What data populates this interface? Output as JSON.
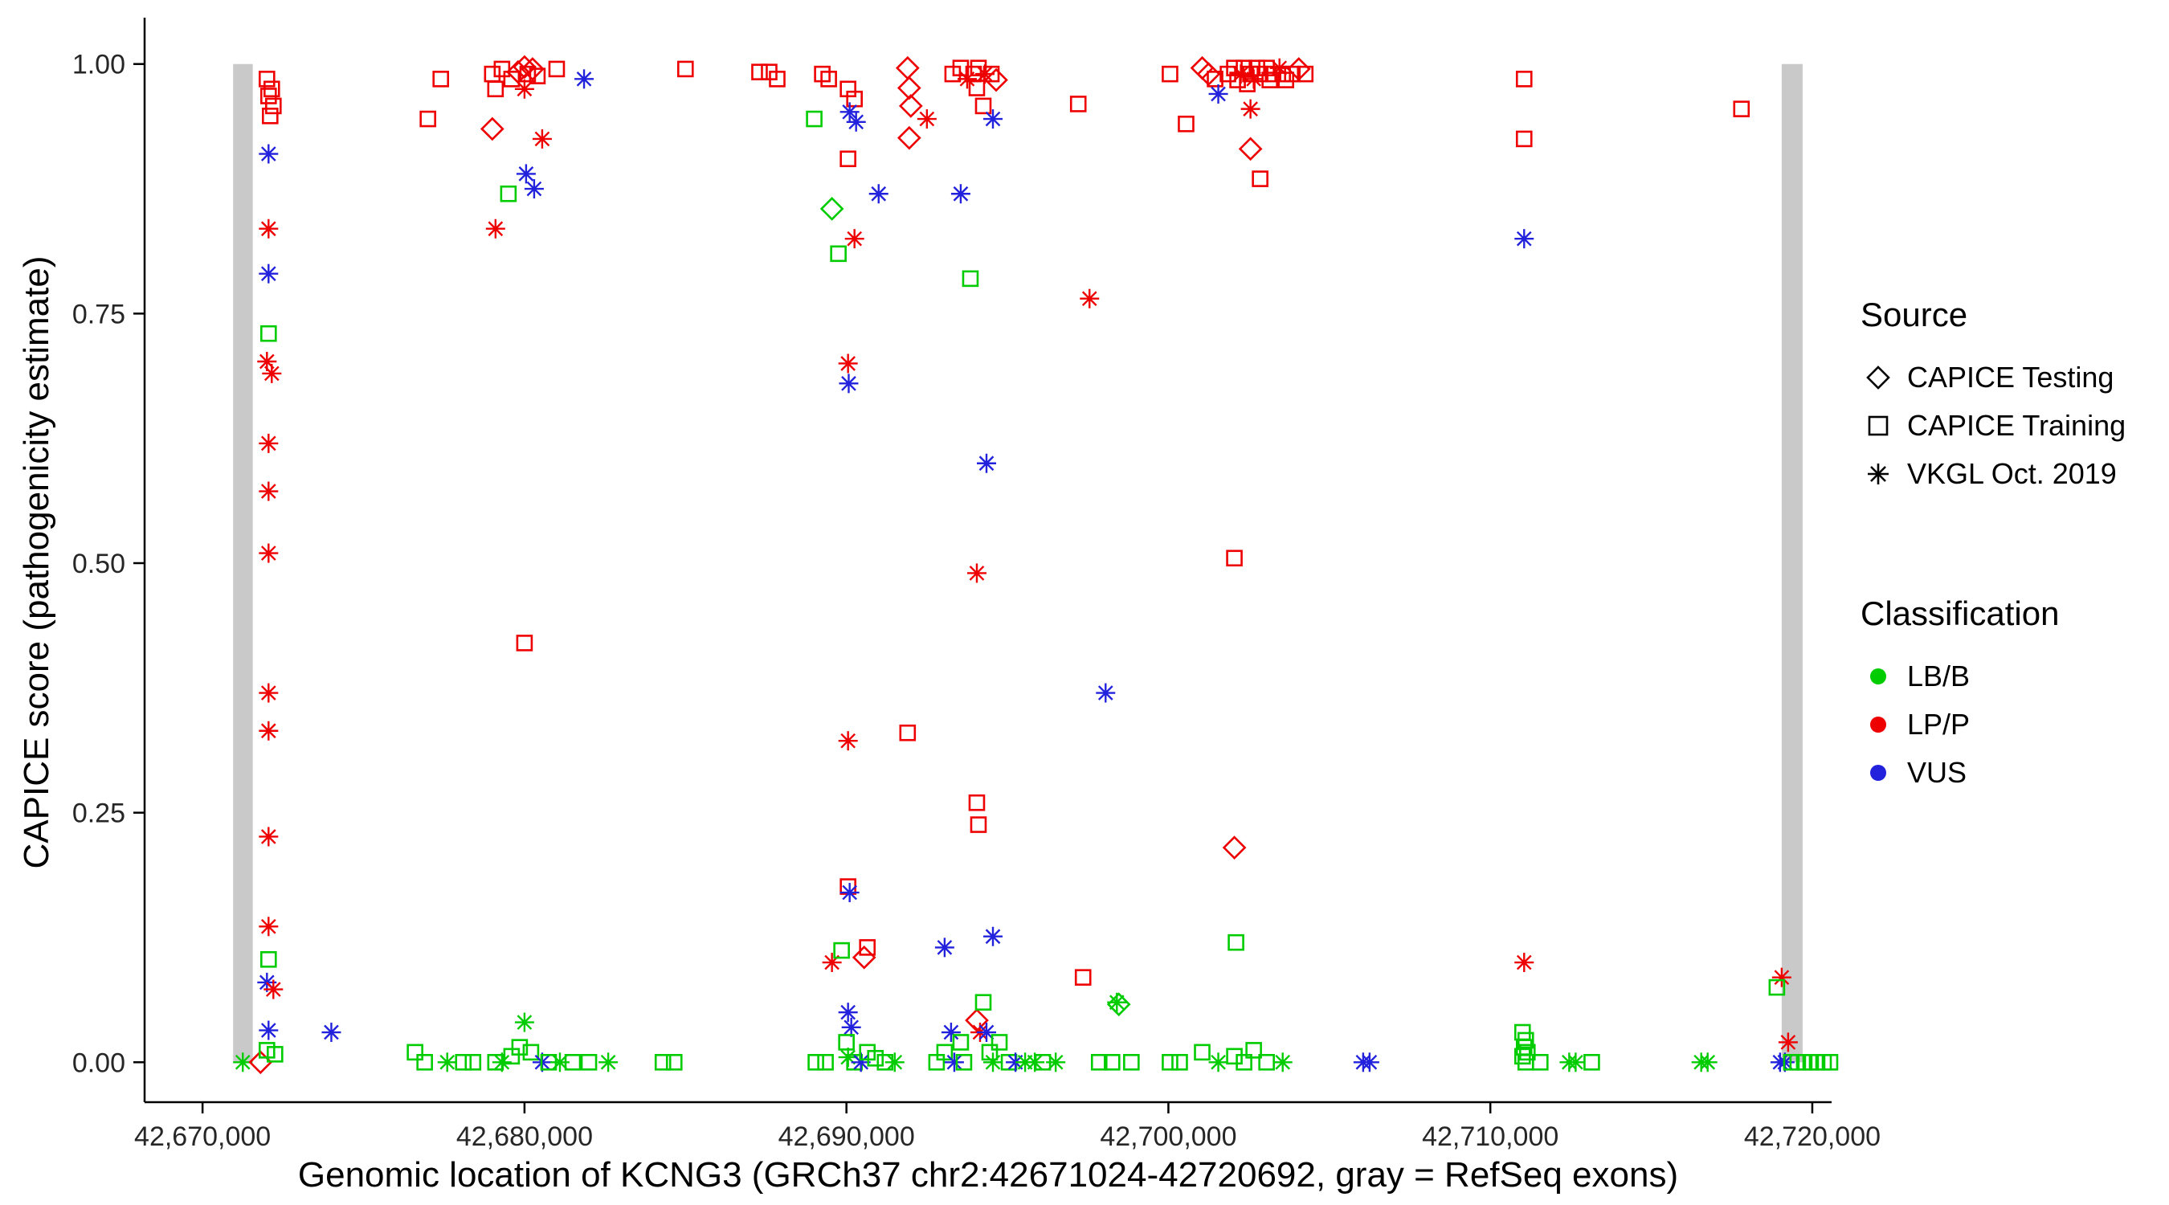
{
  "chart_data": {
    "type": "scatter",
    "title": "",
    "xlabel": "Genomic location of KCNG3 (GRCh37 chr2:42671024-42720692, gray = RefSeq exons)",
    "ylabel": "CAPICE score (pathogenicity estimate)",
    "xlim": [
      42668200,
      42720600
    ],
    "ylim": [
      -0.04,
      1.04
    ],
    "grid": "off",
    "x_ticks": [
      {
        "value": 42670000,
        "label": "42,670,000"
      },
      {
        "value": 42680000,
        "label": "42,680,000"
      },
      {
        "value": 42690000,
        "label": "42,690,000"
      },
      {
        "value": 42700000,
        "label": "42,700,000"
      },
      {
        "value": 42710000,
        "label": "42,710,000"
      },
      {
        "value": 42720000,
        "label": "42,720,000"
      }
    ],
    "y_ticks": [
      {
        "value": 0.0,
        "label": "0.00"
      },
      {
        "value": 0.25,
        "label": "0.25"
      },
      {
        "value": 0.5,
        "label": "0.50"
      },
      {
        "value": 0.75,
        "label": "0.75"
      },
      {
        "value": 1.0,
        "label": "1.00"
      }
    ],
    "exon_color": "#c9c9c9",
    "exons": [
      {
        "start": 42670950,
        "end": 42671560
      },
      {
        "start": 42719050,
        "end": 42719700
      }
    ],
    "shape_map": {
      "d": "CAPICE Testing",
      "s": "CAPICE Training",
      "a": "VKGL Oct. 2019"
    },
    "class_map": {
      "g": "LB/B",
      "r": "LP/P",
      "b": "VUS"
    },
    "colors": {
      "g": "#00cc00",
      "r": "#ee0000",
      "b": "#2222dd"
    },
    "points": [
      [
        42671250,
        0.0,
        "a",
        "g"
      ],
      [
        42671800,
        0.0,
        "d",
        "r"
      ],
      [
        42672000,
        0.985,
        "s",
        "r"
      ],
      [
        42672150,
        0.975,
        "s",
        "r"
      ],
      [
        42672050,
        0.968,
        "s",
        "r"
      ],
      [
        42672200,
        0.958,
        "s",
        "r"
      ],
      [
        42672100,
        0.948,
        "s",
        "r"
      ],
      [
        42672050,
        0.91,
        "a",
        "b"
      ],
      [
        42672050,
        0.835,
        "a",
        "r"
      ],
      [
        42672050,
        0.79,
        "a",
        "b"
      ],
      [
        42672050,
        0.73,
        "s",
        "g"
      ],
      [
        42672000,
        0.702,
        "a",
        "r"
      ],
      [
        42672150,
        0.69,
        "a",
        "r"
      ],
      [
        42672050,
        0.62,
        "a",
        "r"
      ],
      [
        42672050,
        0.572,
        "a",
        "r"
      ],
      [
        42672050,
        0.51,
        "a",
        "r"
      ],
      [
        42672050,
        0.37,
        "a",
        "r"
      ],
      [
        42672050,
        0.332,
        "a",
        "r"
      ],
      [
        42672050,
        0.226,
        "a",
        "r"
      ],
      [
        42672050,
        0.136,
        "a",
        "r"
      ],
      [
        42672050,
        0.103,
        "s",
        "g"
      ],
      [
        42672000,
        0.08,
        "a",
        "b"
      ],
      [
        42672200,
        0.073,
        "a",
        "r"
      ],
      [
        42672050,
        0.032,
        "a",
        "b"
      ],
      [
        42672000,
        0.012,
        "s",
        "g"
      ],
      [
        42672250,
        0.008,
        "s",
        "g"
      ],
      [
        42674000,
        0.03,
        "a",
        "b"
      ],
      [
        42676600,
        0.01,
        "s",
        "g"
      ],
      [
        42676900,
        0.0,
        "s",
        "g"
      ],
      [
        42677000,
        0.945,
        "s",
        "r"
      ],
      [
        42677400,
        0.985,
        "s",
        "r"
      ],
      [
        42677600,
        0.0,
        "a",
        "g"
      ],
      [
        42678100,
        0.0,
        "s",
        "g"
      ],
      [
        42678400,
        0.0,
        "s",
        "g"
      ],
      [
        42679000,
        0.99,
        "s",
        "r"
      ],
      [
        42679100,
        0.975,
        "s",
        "r"
      ],
      [
        42679300,
        0.995,
        "s",
        "r"
      ],
      [
        42679000,
        0.935,
        "d",
        "r"
      ],
      [
        42679100,
        0.835,
        "a",
        "r"
      ],
      [
        42679500,
        0.87,
        "s",
        "g"
      ],
      [
        42679600,
        0.985,
        "s",
        "r"
      ],
      [
        42679800,
        0.992,
        "d",
        "r"
      ],
      [
        42680000,
        0.997,
        "d",
        "r"
      ],
      [
        42680100,
        0.99,
        "s",
        "r"
      ],
      [
        42680250,
        0.995,
        "d",
        "r"
      ],
      [
        42680400,
        0.988,
        "s",
        "r"
      ],
      [
        42680000,
        0.975,
        "a",
        "r"
      ],
      [
        42680550,
        0.925,
        "a",
        "r"
      ],
      [
        42680050,
        0.89,
        "a",
        "b"
      ],
      [
        42680300,
        0.875,
        "a",
        "b"
      ],
      [
        42681000,
        0.995,
        "s",
        "r"
      ],
      [
        42681850,
        0.985,
        "a",
        "b"
      ],
      [
        42680000,
        0.42,
        "s",
        "r"
      ],
      [
        42679100,
        0.0,
        "s",
        "g"
      ],
      [
        42679300,
        0.0,
        "a",
        "g"
      ],
      [
        42679600,
        0.006,
        "s",
        "g"
      ],
      [
        42679850,
        0.015,
        "s",
        "g"
      ],
      [
        42680000,
        0.04,
        "a",
        "g"
      ],
      [
        42680200,
        0.01,
        "s",
        "g"
      ],
      [
        42680550,
        0.0,
        "a",
        "b"
      ],
      [
        42680750,
        0.0,
        "s",
        "g"
      ],
      [
        42681100,
        0.0,
        "a",
        "g"
      ],
      [
        42681500,
        0.0,
        "s",
        "g"
      ],
      [
        42682000,
        0.0,
        "s",
        "g"
      ],
      [
        42682600,
        0.0,
        "a",
        "g"
      ],
      [
        42684300,
        0.0,
        "s",
        "g"
      ],
      [
        42684650,
        0.0,
        "s",
        "g"
      ],
      [
        42685000,
        0.995,
        "s",
        "r"
      ],
      [
        42687300,
        0.992,
        "s",
        "r"
      ],
      [
        42687600,
        0.992,
        "s",
        "r"
      ],
      [
        42687850,
        0.985,
        "s",
        "r"
      ],
      [
        42689000,
        0.945,
        "s",
        "g"
      ],
      [
        42689250,
        0.99,
        "s",
        "r"
      ],
      [
        42689450,
        0.985,
        "s",
        "r"
      ],
      [
        42690050,
        0.975,
        "s",
        "r"
      ],
      [
        42690250,
        0.965,
        "s",
        "r"
      ],
      [
        42690100,
        0.952,
        "a",
        "b"
      ],
      [
        42690300,
        0.942,
        "a",
        "b"
      ],
      [
        42690050,
        0.905,
        "s",
        "r"
      ],
      [
        42689550,
        0.855,
        "d",
        "g"
      ],
      [
        42689750,
        0.81,
        "s",
        "g"
      ],
      [
        42690250,
        0.825,
        "a",
        "r"
      ],
      [
        42691000,
        0.87,
        "a",
        "b"
      ],
      [
        42690050,
        0.7,
        "a",
        "r"
      ],
      [
        42690070,
        0.68,
        "a",
        "b"
      ],
      [
        42690050,
        0.322,
        "a",
        "r"
      ],
      [
        42689550,
        0.1,
        "a",
        "r"
      ],
      [
        42689850,
        0.112,
        "s",
        "g"
      ],
      [
        42690050,
        0.176,
        "s",
        "r"
      ],
      [
        42690100,
        0.17,
        "a",
        "b"
      ],
      [
        42690550,
        0.105,
        "d",
        "r"
      ],
      [
        42690650,
        0.115,
        "s",
        "r"
      ],
      [
        42690050,
        0.05,
        "a",
        "b"
      ],
      [
        42690150,
        0.035,
        "a",
        "b"
      ],
      [
        42690000,
        0.02,
        "s",
        "g"
      ],
      [
        42689050,
        0.0,
        "s",
        "g"
      ],
      [
        42689350,
        0.0,
        "s",
        "g"
      ],
      [
        42690050,
        0.005,
        "a",
        "g"
      ],
      [
        42690250,
        0.0,
        "s",
        "g"
      ],
      [
        42690450,
        0.0,
        "a",
        "b"
      ],
      [
        42690650,
        0.01,
        "s",
        "g"
      ],
      [
        42690900,
        0.004,
        "s",
        "g"
      ],
      [
        42691200,
        0.0,
        "s",
        "g"
      ],
      [
        42691500,
        0.0,
        "a",
        "g"
      ],
      [
        42691900,
        0.996,
        "d",
        "r"
      ],
      [
        42691950,
        0.976,
        "d",
        "r"
      ],
      [
        42692000,
        0.958,
        "d",
        "r"
      ],
      [
        42691950,
        0.926,
        "d",
        "r"
      ],
      [
        42692500,
        0.945,
        "a",
        "r"
      ],
      [
        42691900,
        0.33,
        "s",
        "r"
      ],
      [
        42693300,
        0.99,
        "s",
        "r"
      ],
      [
        42693550,
        0.996,
        "s",
        "r"
      ],
      [
        42693750,
        0.985,
        "a",
        "r"
      ],
      [
        42693950,
        0.99,
        "s",
        "r"
      ],
      [
        42694100,
        0.996,
        "s",
        "r"
      ],
      [
        42694300,
        0.99,
        "a",
        "r"
      ],
      [
        42694050,
        0.976,
        "s",
        "r"
      ],
      [
        42694250,
        0.958,
        "s",
        "r"
      ],
      [
        42694500,
        0.99,
        "s",
        "r"
      ],
      [
        42694650,
        0.984,
        "d",
        "r"
      ],
      [
        42694550,
        0.945,
        "a",
        "b"
      ],
      [
        42693550,
        0.87,
        "a",
        "b"
      ],
      [
        42693850,
        0.785,
        "s",
        "g"
      ],
      [
        42694050,
        0.49,
        "a",
        "r"
      ],
      [
        42694350,
        0.6,
        "a",
        "b"
      ],
      [
        42694050,
        0.26,
        "s",
        "r"
      ],
      [
        42694100,
        0.238,
        "s",
        "r"
      ],
      [
        42693050,
        0.115,
        "a",
        "b"
      ],
      [
        42694550,
        0.126,
        "a",
        "b"
      ],
      [
        42692800,
        0.0,
        "s",
        "g"
      ],
      [
        42693050,
        0.01,
        "s",
        "g"
      ],
      [
        42693250,
        0.03,
        "a",
        "b"
      ],
      [
        42693350,
        0.0,
        "a",
        "b"
      ],
      [
        42693550,
        0.02,
        "s",
        "g"
      ],
      [
        42693650,
        0.0,
        "s",
        "g"
      ],
      [
        42694050,
        0.042,
        "d",
        "r"
      ],
      [
        42694150,
        0.03,
        "a",
        "r"
      ],
      [
        42694250,
        0.06,
        "s",
        "g"
      ],
      [
        42694350,
        0.03,
        "a",
        "b"
      ],
      [
        42694450,
        0.01,
        "s",
        "g"
      ],
      [
        42694550,
        0.0,
        "a",
        "g"
      ],
      [
        42694750,
        0.02,
        "s",
        "g"
      ],
      [
        42695050,
        0.0,
        "s",
        "g"
      ],
      [
        42695250,
        0.0,
        "a",
        "b"
      ],
      [
        42695550,
        0.0,
        "a",
        "g"
      ],
      [
        42695850,
        0.0,
        "a",
        "g"
      ],
      [
        42696100,
        0.0,
        "s",
        "g"
      ],
      [
        42696500,
        0.0,
        "a",
        "g"
      ],
      [
        42697200,
        0.96,
        "s",
        "r"
      ],
      [
        42697550,
        0.765,
        "a",
        "r"
      ],
      [
        42698050,
        0.37,
        "a",
        "b"
      ],
      [
        42697350,
        0.085,
        "s",
        "r"
      ],
      [
        42698400,
        0.06,
        "a",
        "g"
      ],
      [
        42698460,
        0.058,
        "d",
        "g"
      ],
      [
        42697850,
        0.0,
        "s",
        "g"
      ],
      [
        42698250,
        0.0,
        "s",
        "g"
      ],
      [
        42698850,
        0.0,
        "s",
        "g"
      ],
      [
        42700050,
        0.99,
        "s",
        "r"
      ],
      [
        42700550,
        0.94,
        "s",
        "r"
      ],
      [
        42701050,
        0.996,
        "d",
        "r"
      ],
      [
        42701250,
        0.99,
        "d",
        "r"
      ],
      [
        42701450,
        0.985,
        "s",
        "r"
      ],
      [
        42701550,
        0.97,
        "a",
        "b"
      ],
      [
        42701850,
        0.99,
        "s",
        "r"
      ],
      [
        42702050,
        0.996,
        "s",
        "r"
      ],
      [
        42702150,
        0.984,
        "s",
        "r"
      ],
      [
        42702250,
        0.99,
        "a",
        "r"
      ],
      [
        42702350,
        0.996,
        "s",
        "r"
      ],
      [
        42702450,
        0.98,
        "s",
        "r"
      ],
      [
        42702550,
        0.99,
        "s",
        "r"
      ],
      [
        42702650,
        0.985,
        "a",
        "r"
      ],
      [
        42702750,
        0.996,
        "s",
        "r"
      ],
      [
        42702850,
        0.99,
        "s",
        "r"
      ],
      [
        42703050,
        0.996,
        "s",
        "r"
      ],
      [
        42703150,
        0.984,
        "s",
        "r"
      ],
      [
        42703250,
        0.99,
        "s",
        "r"
      ],
      [
        42703450,
        0.996,
        "a",
        "r"
      ],
      [
        42703550,
        0.99,
        "s",
        "r"
      ],
      [
        42703650,
        0.984,
        "s",
        "r"
      ],
      [
        42703850,
        0.99,
        "s",
        "r"
      ],
      [
        42704050,
        0.995,
        "d",
        "r"
      ],
      [
        42704250,
        0.99,
        "s",
        "r"
      ],
      [
        42702550,
        0.955,
        "a",
        "r"
      ],
      [
        42702550,
        0.915,
        "d",
        "r"
      ],
      [
        42702850,
        0.885,
        "s",
        "r"
      ],
      [
        42702050,
        0.505,
        "s",
        "r"
      ],
      [
        42702050,
        0.215,
        "d",
        "r"
      ],
      [
        42702100,
        0.12,
        "s",
        "g"
      ],
      [
        42700050,
        0.0,
        "s",
        "g"
      ],
      [
        42700350,
        0.0,
        "s",
        "g"
      ],
      [
        42701050,
        0.01,
        "s",
        "g"
      ],
      [
        42701550,
        0.0,
        "a",
        "g"
      ],
      [
        42702050,
        0.006,
        "s",
        "g"
      ],
      [
        42702350,
        0.0,
        "s",
        "g"
      ],
      [
        42702650,
        0.012,
        "s",
        "g"
      ],
      [
        42703050,
        0.0,
        "s",
        "g"
      ],
      [
        42703550,
        0.0,
        "a",
        "g"
      ],
      [
        42706050,
        0.0,
        "a",
        "b"
      ],
      [
        42706250,
        0.0,
        "a",
        "b"
      ],
      [
        42711050,
        0.985,
        "s",
        "r"
      ],
      [
        42711050,
        0.925,
        "s",
        "r"
      ],
      [
        42711050,
        0.825,
        "a",
        "b"
      ],
      [
        42711050,
        0.1,
        "a",
        "r"
      ],
      [
        42711000,
        0.03,
        "s",
        "g"
      ],
      [
        42711100,
        0.022,
        "s",
        "g"
      ],
      [
        42711050,
        0.015,
        "s",
        "g"
      ],
      [
        42711150,
        0.01,
        "s",
        "g"
      ],
      [
        42711000,
        0.006,
        "s",
        "g"
      ],
      [
        42711100,
        0.0,
        "s",
        "g"
      ],
      [
        42711550,
        0.0,
        "s",
        "g"
      ],
      [
        42712450,
        0.0,
        "a",
        "g"
      ],
      [
        42712650,
        0.0,
        "a",
        "g"
      ],
      [
        42713150,
        0.0,
        "s",
        "g"
      ],
      [
        42717800,
        0.955,
        "s",
        "r"
      ],
      [
        42716550,
        0.0,
        "a",
        "g"
      ],
      [
        42716750,
        0.0,
        "a",
        "g"
      ],
      [
        42719050,
        0.085,
        "a",
        "r"
      ],
      [
        42718900,
        0.075,
        "s",
        "g"
      ],
      [
        42719250,
        0.02,
        "a",
        "r"
      ],
      [
        42719000,
        0.0,
        "a",
        "b"
      ],
      [
        42719150,
        0.0,
        "a",
        "b"
      ],
      [
        42719350,
        0.0,
        "s",
        "g"
      ],
      [
        42719550,
        0.0,
        "s",
        "g"
      ],
      [
        42719750,
        0.0,
        "s",
        "g"
      ],
      [
        42719950,
        0.0,
        "s",
        "g"
      ],
      [
        42720150,
        0.0,
        "s",
        "g"
      ],
      [
        42720350,
        0.0,
        "s",
        "g"
      ],
      [
        42720550,
        0.0,
        "s",
        "g"
      ]
    ]
  },
  "legend": {
    "source": {
      "title": "Source",
      "items": [
        {
          "shape": "diamond",
          "label": "CAPICE Testing"
        },
        {
          "shape": "square",
          "label": "CAPICE Training"
        },
        {
          "shape": "asterisk",
          "label": "VKGL Oct. 2019"
        }
      ]
    },
    "classification": {
      "title": "Classification",
      "items": [
        {
          "label": "LB/B",
          "color": "#00cc00"
        },
        {
          "label": "LP/P",
          "color": "#ee0000"
        },
        {
          "label": "VUS",
          "color": "#2222dd"
        }
      ]
    }
  }
}
